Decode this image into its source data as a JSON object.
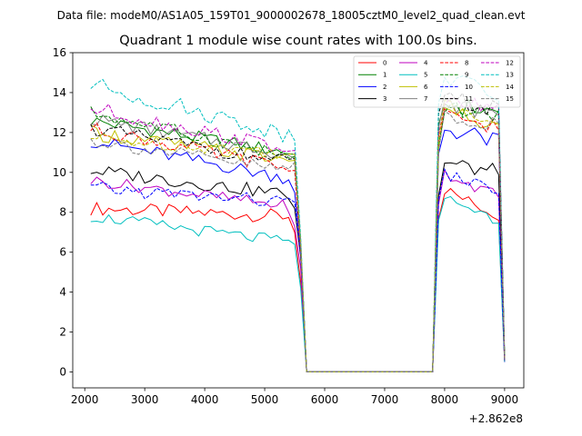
{
  "figure": {
    "suptitle": "Data file: modeM0/AS1A05_159T01_9000002678_18005cztM0_level2_quad_clean.evt",
    "title": "Quadrant 1 module wise count rates with 100.0s bins."
  },
  "chart_data": {
    "type": "line",
    "title": "Quadrant 1 module wise count rates with 100.0s bins.",
    "xlabel": "",
    "ylabel": "",
    "x_offset_label": "+2.862e8",
    "xlim": [
      1800,
      9320
    ],
    "ylim": [
      -0.8,
      16
    ],
    "xticks": [
      2000,
      3000,
      4000,
      5000,
      6000,
      7000,
      8000,
      9000
    ],
    "xtick_labels": [
      "2000",
      "3000",
      "4000",
      "5000",
      "6000",
      "7000",
      "8000",
      "9000"
    ],
    "yticks": [
      0,
      2,
      4,
      6,
      8,
      10,
      12,
      14,
      16
    ],
    "ytick_labels": [
      "0",
      "2",
      "4",
      "6",
      "8",
      "10",
      "12",
      "14",
      "16"
    ],
    "legend_position": "upper right",
    "legend_columns": 4,
    "x_segments": {
      "seg1": [
        2100,
        5400
      ],
      "ramp": [
        5500,
        5600
      ],
      "gap": [
        5700,
        7800
      ],
      "seg2": [
        7900,
        8900
      ],
      "drop": [
        9000
      ]
    },
    "series": [
      {
        "name": "0",
        "color": "#ff0000",
        "dashed": false,
        "base1": 8.2,
        "slope1": -0.4,
        "amp": 0.35,
        "ramp": [
          7.0,
          4.5
        ],
        "base2": 9.3,
        "slope2": -1.5,
        "amp2": 0.3,
        "final": 0.5
      },
      {
        "name": "1",
        "color": "#008000",
        "dashed": false,
        "base1": 12.6,
        "slope1": -1.6,
        "amp": 0.35,
        "ramp": [
          10.9,
          6.5
        ],
        "base2": 13.5,
        "slope2": -0.5,
        "amp2": 0.5,
        "final": 0.7
      },
      {
        "name": "2",
        "color": "#0000ff",
        "dashed": false,
        "base1": 11.6,
        "slope1": -1.9,
        "amp": 0.35,
        "ramp": [
          9.0,
          6.2
        ],
        "base2": 12.3,
        "slope2": -0.8,
        "amp2": 0.5,
        "final": 0.6
      },
      {
        "name": "3",
        "color": "#000000",
        "dashed": false,
        "base1": 10.1,
        "slope1": -1.2,
        "amp": 0.35,
        "ramp": [
          8.2,
          5.8
        ],
        "base2": 10.5,
        "slope2": -0.5,
        "amp2": 0.4,
        "final": 0.6
      },
      {
        "name": "4",
        "color": "#bf00bf",
        "dashed": false,
        "base1": 9.6,
        "slope1": -1.3,
        "amp": 0.3,
        "ramp": [
          7.3,
          5.2
        ],
        "base2": 10.1,
        "slope2": -1.3,
        "amp2": 0.3,
        "final": 0.5
      },
      {
        "name": "5",
        "color": "#00bfbf",
        "dashed": false,
        "base1": 7.8,
        "slope1": -1.3,
        "amp": 0.3,
        "ramp": [
          6.4,
          4.2
        ],
        "base2": 8.9,
        "slope2": -1.3,
        "amp2": 0.3,
        "final": 0.5
      },
      {
        "name": "6",
        "color": "#bfbf00",
        "dashed": false,
        "base1": 12.0,
        "slope1": -1.4,
        "amp": 0.4,
        "ramp": [
          10.6,
          6.4
        ],
        "base2": 13.0,
        "slope2": -0.7,
        "amp2": 0.5,
        "final": 0.6
      },
      {
        "name": "7",
        "color": "#808080",
        "dashed": false,
        "base1": 12.7,
        "slope1": -1.8,
        "amp": 0.35,
        "ramp": [
          10.7,
          6.3
        ],
        "base2": 13.5,
        "slope2": -0.6,
        "amp2": 0.4,
        "final": 0.6
      },
      {
        "name": "8",
        "color": "#ff0000",
        "dashed": true,
        "base1": 12.2,
        "slope1": -2.0,
        "amp": 0.35,
        "ramp": [
          10.1,
          6.0
        ],
        "base2": 12.9,
        "slope2": -0.6,
        "amp2": 0.4,
        "final": 0.6
      },
      {
        "name": "9",
        "color": "#008000",
        "dashed": true,
        "base1": 13.0,
        "slope1": -2.2,
        "amp": 0.35,
        "ramp": [
          10.8,
          6.4
        ],
        "base2": 13.2,
        "slope2": -0.3,
        "amp2": 0.4,
        "final": 0.7
      },
      {
        "name": "10",
        "color": "#0000ff",
        "dashed": true,
        "base1": 9.2,
        "slope1": -0.7,
        "amp": 0.35,
        "ramp": [
          8.5,
          5.9
        ],
        "base2": 10.0,
        "slope2": -0.9,
        "amp2": 0.3,
        "final": 0.5
      },
      {
        "name": "11",
        "color": "#000000",
        "dashed": true,
        "base1": 12.2,
        "slope1": -1.7,
        "amp": 0.35,
        "ramp": [
          10.7,
          6.4
        ],
        "base2": 14.2,
        "slope2": -1.2,
        "amp2": 0.5,
        "final": 0.7
      },
      {
        "name": "12",
        "color": "#bf00bf",
        "dashed": true,
        "base1": 13.2,
        "slope1": -2.0,
        "amp": 0.4,
        "ramp": [
          11.1,
          6.6
        ],
        "base2": 13.7,
        "slope2": -0.6,
        "amp2": 0.4,
        "final": 0.7
      },
      {
        "name": "13",
        "color": "#00bfbf",
        "dashed": true,
        "base1": 14.4,
        "slope1": -2.5,
        "amp": 0.45,
        "ramp": [
          11.6,
          6.8
        ],
        "base2": 15.0,
        "slope2": -1.3,
        "amp2": 0.5,
        "final": 0.8
      },
      {
        "name": "14",
        "color": "#bfbf00",
        "dashed": true,
        "base1": 11.7,
        "slope1": -0.7,
        "amp": 0.35,
        "ramp": [
          10.9,
          6.4
        ],
        "base2": 13.4,
        "slope2": -0.7,
        "amp2": 0.4,
        "final": 0.7
      },
      {
        "name": "15",
        "color": "#808080",
        "dashed": true,
        "base1": 11.6,
        "slope1": -1.5,
        "amp": 0.35,
        "ramp": [
          10.5,
          6.2
        ],
        "base2": 12.9,
        "slope2": -0.5,
        "amp2": 0.4,
        "final": 0.6
      }
    ]
  }
}
